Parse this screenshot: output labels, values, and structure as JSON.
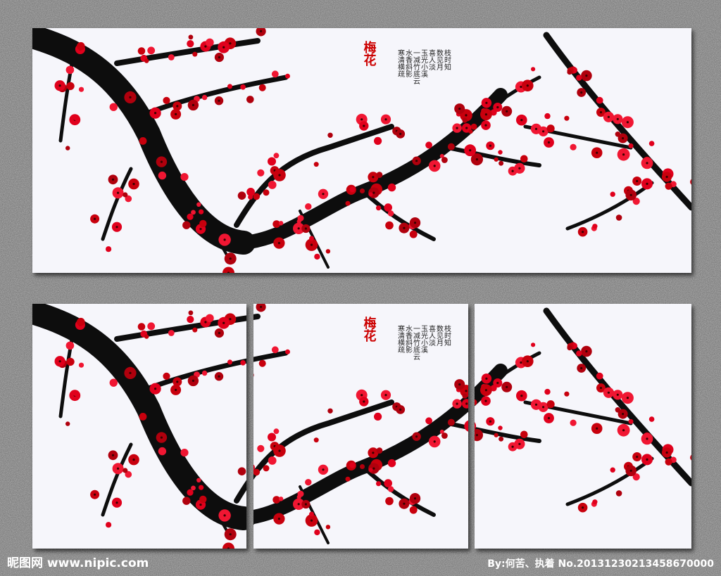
{
  "artwork": {
    "title": "梅花",
    "poem_columns": [
      "枝时知",
      "数见月",
      "喜人淡",
      "玉光小溪",
      "一减竹底云",
      "水香斜影",
      "寒清横疏"
    ]
  },
  "watermark": {
    "site": "昵图网 www.nipic.com",
    "credit": "By:何苦、执着 No.20131230213458670000"
  }
}
